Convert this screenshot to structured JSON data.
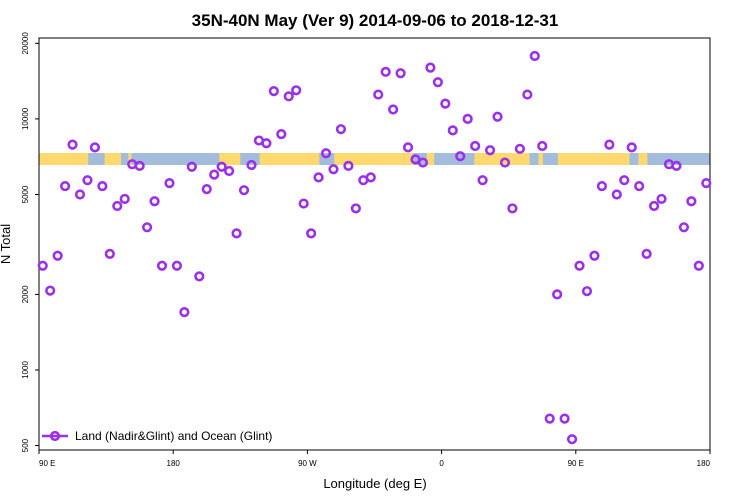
{
  "chart_data": {
    "type": "scatter",
    "title": "35N-40N May (Ver 9)   2014-09-06 to 2018-12-31",
    "xlabel": "Longitude (deg E)",
    "ylabel": "N Total",
    "y_scale": "log",
    "xlim": [
      90,
      540
    ],
    "ylim": [
      480,
      21000
    ],
    "x_ticks": [
      {
        "value": 90,
        "label": "90 E"
      },
      {
        "value": 180,
        "label": "180"
      },
      {
        "value": 270,
        "label": "90 W"
      },
      {
        "value": 360,
        "label": "0"
      },
      {
        "value": 450,
        "label": "90 E"
      },
      {
        "value": 540,
        "label": "180"
      }
    ],
    "y_ticks": [
      {
        "value": 500,
        "label": "500"
      },
      {
        "value": 1000,
        "label": "1000"
      },
      {
        "value": 2000,
        "label": "2000"
      },
      {
        "value": 5000,
        "label": "5000"
      },
      {
        "value": 10000,
        "label": "10000"
      },
      {
        "value": 20000,
        "label": "20000"
      }
    ],
    "grid": false,
    "legend_position": "bottom-left",
    "land_ocean_strip": {
      "land_color": "#ffd970",
      "ocean_color": "#a3bcdc",
      "land_segments": [
        [
          90,
          123
        ],
        [
          134,
          145
        ],
        [
          150,
          152
        ],
        [
          211,
          225
        ],
        [
          238,
          278
        ],
        [
          288,
          341
        ],
        [
          350,
          355
        ],
        [
          382,
          419
        ],
        [
          425,
          428
        ],
        [
          438,
          486
        ],
        [
          492,
          498
        ]
      ]
    },
    "series": [
      {
        "name": "Land (Nadir&Glint) and Ocean (Glint)",
        "color": "#9b30e8",
        "points": [
          {
            "x": 92.5,
            "y": 2600
          },
          {
            "x": 97.5,
            "y": 2070
          },
          {
            "x": 102.5,
            "y": 2850
          },
          {
            "x": 107.5,
            "y": 5400
          },
          {
            "x": 112.5,
            "y": 7900
          },
          {
            "x": 117.5,
            "y": 5000
          },
          {
            "x": 122.5,
            "y": 5700
          },
          {
            "x": 127.5,
            "y": 7700
          },
          {
            "x": 132.5,
            "y": 5400
          },
          {
            "x": 137.5,
            "y": 2900
          },
          {
            "x": 142.5,
            "y": 4500
          },
          {
            "x": 147.5,
            "y": 4800
          },
          {
            "x": 152.5,
            "y": 6600
          },
          {
            "x": 157.5,
            "y": 6500
          },
          {
            "x": 162.5,
            "y": 3700
          },
          {
            "x": 167.5,
            "y": 4700
          },
          {
            "x": 172.5,
            "y": 2600
          },
          {
            "x": 177.5,
            "y": 5550
          },
          {
            "x": 182.5,
            "y": 2600
          },
          {
            "x": 187.5,
            "y": 1700
          },
          {
            "x": 192.5,
            "y": 6450
          },
          {
            "x": 197.5,
            "y": 2360
          },
          {
            "x": 202.5,
            "y": 5250
          },
          {
            "x": 207.5,
            "y": 6000
          },
          {
            "x": 212.5,
            "y": 6450
          },
          {
            "x": 217.5,
            "y": 6200
          },
          {
            "x": 222.5,
            "y": 3500
          },
          {
            "x": 227.5,
            "y": 5200
          },
          {
            "x": 232.5,
            "y": 6550
          },
          {
            "x": 237.5,
            "y": 8200
          },
          {
            "x": 242.5,
            "y": 8000
          },
          {
            "x": 247.5,
            "y": 12900
          },
          {
            "x": 252.5,
            "y": 8700
          },
          {
            "x": 257.5,
            "y": 12300
          },
          {
            "x": 262.5,
            "y": 13000
          },
          {
            "x": 267.5,
            "y": 4600
          },
          {
            "x": 272.5,
            "y": 3500
          },
          {
            "x": 277.5,
            "y": 5850
          },
          {
            "x": 282.5,
            "y": 7300
          },
          {
            "x": 287.5,
            "y": 6300
          },
          {
            "x": 292.5,
            "y": 9100
          },
          {
            "x": 297.5,
            "y": 6500
          },
          {
            "x": 302.5,
            "y": 4400
          },
          {
            "x": 307.5,
            "y": 5700
          },
          {
            "x": 312.5,
            "y": 5850
          },
          {
            "x": 317.5,
            "y": 12500
          },
          {
            "x": 322.5,
            "y": 15400
          },
          {
            "x": 327.5,
            "y": 10900
          },
          {
            "x": 332.5,
            "y": 15200
          },
          {
            "x": 337.5,
            "y": 7700
          },
          {
            "x": 342.5,
            "y": 6900
          },
          {
            "x": 347.5,
            "y": 6700
          },
          {
            "x": 352.5,
            "y": 16000
          },
          {
            "x": 357.5,
            "y": 14000
          },
          {
            "x": 362.5,
            "y": 11500
          },
          {
            "x": 367.5,
            "y": 9000
          },
          {
            "x": 372.5,
            "y": 7100
          },
          {
            "x": 377.5,
            "y": 10000
          },
          {
            "x": 382.5,
            "y": 7800
          },
          {
            "x": 387.5,
            "y": 5700
          },
          {
            "x": 392.5,
            "y": 7500
          },
          {
            "x": 397.5,
            "y": 10200
          },
          {
            "x": 402.5,
            "y": 6700
          },
          {
            "x": 407.5,
            "y": 4400
          },
          {
            "x": 412.5,
            "y": 7600
          },
          {
            "x": 417.5,
            "y": 12500
          },
          {
            "x": 422.5,
            "y": 17800
          },
          {
            "x": 427.5,
            "y": 7800
          },
          {
            "x": 432.5,
            "y": 640
          },
          {
            "x": 437.5,
            "y": 2000
          },
          {
            "x": 442.5,
            "y": 640
          },
          {
            "x": 447.5,
            "y": 530
          },
          {
            "x": 452.5,
            "y": 2600
          },
          {
            "x": 457.5,
            "y": 2060
          },
          {
            "x": 462.5,
            "y": 2850
          },
          {
            "x": 467.5,
            "y": 5400
          },
          {
            "x": 472.5,
            "y": 7900
          },
          {
            "x": 477.5,
            "y": 5000
          },
          {
            "x": 482.5,
            "y": 5700
          },
          {
            "x": 487.5,
            "y": 7700
          },
          {
            "x": 492.5,
            "y": 5400
          },
          {
            "x": 497.5,
            "y": 2900
          },
          {
            "x": 502.5,
            "y": 4500
          },
          {
            "x": 507.5,
            "y": 4800
          },
          {
            "x": 512.5,
            "y": 6600
          },
          {
            "x": 517.5,
            "y": 6500
          },
          {
            "x": 522.5,
            "y": 3700
          },
          {
            "x": 527.5,
            "y": 4700
          },
          {
            "x": 532.5,
            "y": 2600
          },
          {
            "x": 537.5,
            "y": 5550
          }
        ]
      }
    ]
  }
}
